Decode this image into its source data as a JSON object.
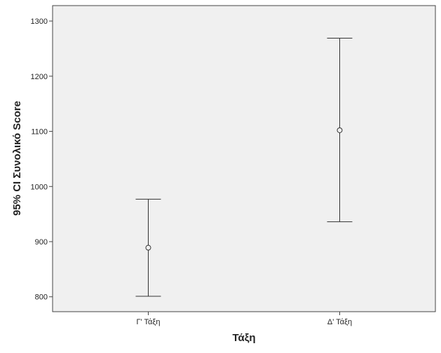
{
  "chart_data": {
    "type": "errorbar",
    "title": "",
    "xlabel": "Τάξη",
    "ylabel": "95% CI Συνολικό Score",
    "categories": [
      "Γ' Τάξη",
      "Δ' Τάξη"
    ],
    "means": [
      889,
      1102
    ],
    "ci_lower": [
      801,
      936
    ],
    "ci_upper": [
      977,
      1269
    ],
    "ylim": [
      773,
      1328
    ],
    "yticks": [
      800,
      900,
      1000,
      1100,
      1200,
      1300
    ],
    "grid": false,
    "legend": "none",
    "colors": {
      "plot_bg": "#f0f0f0",
      "marks": "#333333",
      "frame": "#444444"
    }
  }
}
